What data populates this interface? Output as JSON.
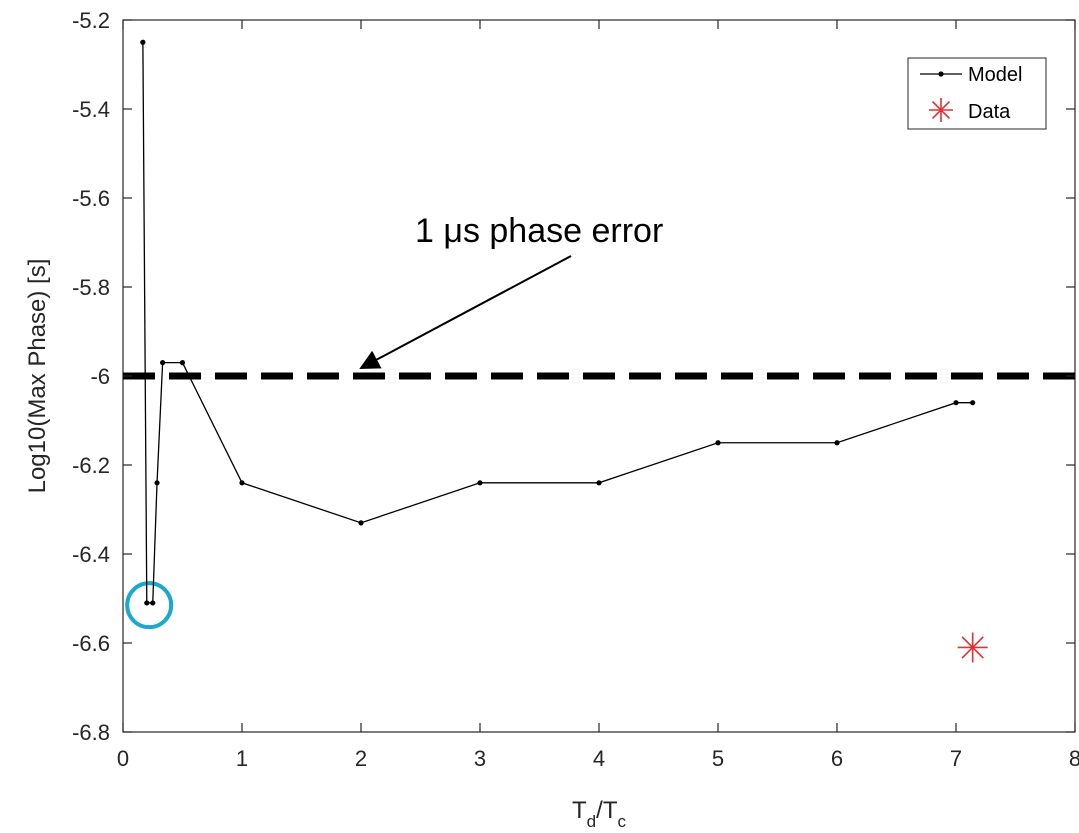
{
  "chart_data": {
    "type": "line",
    "title": "",
    "xlabel": {
      "main": "T",
      "sub1": "d",
      "sep": "/",
      "main2": "T",
      "sub2": "c"
    },
    "ylabel": "Log10(Max Phase) [s]",
    "xlim": [
      0,
      8
    ],
    "ylim": [
      -6.8,
      -5.2
    ],
    "xticks": [
      0,
      1,
      2,
      3,
      4,
      5,
      6,
      7,
      8
    ],
    "xtick_labels": [
      "0",
      "1",
      "2",
      "3",
      "4",
      "5",
      "6",
      "7",
      "8"
    ],
    "yticks": [
      -6.8,
      -6.6,
      -6.4,
      -6.2,
      -6,
      -5.8,
      -5.6,
      -5.4,
      -5.2
    ],
    "ytick_labels": [
      "-6.8",
      "-6.6",
      "-6.4",
      "-6.2",
      "-6",
      "-5.8",
      "-5.6",
      "-5.4",
      "-5.2"
    ],
    "grid": false,
    "legend_position": "top-right",
    "series": [
      {
        "name": "Model",
        "marker": "dot",
        "color": "#000000",
        "x": [
          0.167,
          0.2,
          0.25,
          0.286,
          0.333,
          0.5,
          1,
          2,
          3,
          4,
          5,
          6,
          7,
          7.14
        ],
        "y": [
          -5.25,
          -6.51,
          -6.51,
          -6.24,
          -5.97,
          -5.97,
          -6.24,
          -6.33,
          -6.24,
          -6.24,
          -6.15,
          -6.15,
          -6.06,
          -6.06
        ]
      },
      {
        "name": "Data",
        "marker": "asterisk",
        "color": "#e0302f",
        "x": [
          7.14
        ],
        "y": [
          -6.61
        ]
      }
    ],
    "reference_line": {
      "y": -6,
      "style": "dashed",
      "color": "#000000"
    },
    "annotation": {
      "text": "1 μs phase error",
      "arrow_to": {
        "x": 2,
        "y": -6
      }
    },
    "highlight_circle": {
      "x": 0.22,
      "y": -6.515,
      "color": "#1aa8cf"
    }
  }
}
